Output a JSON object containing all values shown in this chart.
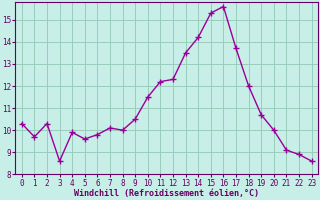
{
  "x": [
    0,
    1,
    2,
    3,
    4,
    5,
    6,
    7,
    8,
    9,
    10,
    11,
    12,
    13,
    14,
    15,
    16,
    17,
    18,
    19,
    20,
    21,
    22,
    23
  ],
  "y": [
    10.3,
    9.7,
    10.3,
    8.6,
    9.9,
    9.6,
    9.8,
    10.1,
    10.0,
    10.5,
    11.5,
    12.2,
    12.3,
    13.5,
    14.2,
    15.3,
    15.6,
    13.7,
    12.0,
    10.7,
    10.0,
    9.1,
    8.9,
    8.6
  ],
  "line_color": "#990099",
  "marker": "+",
  "marker_size": 4,
  "bg_color": "#c8eee8",
  "grid_color": "#99ccbb",
  "xlabel": "Windchill (Refroidissement éolien,°C)",
  "ylim": [
    8,
    15.8
  ],
  "xlim": [
    -0.5,
    23.5
  ],
  "yticks": [
    8,
    9,
    10,
    11,
    12,
    13,
    14,
    15
  ],
  "xticks": [
    0,
    1,
    2,
    3,
    4,
    5,
    6,
    7,
    8,
    9,
    10,
    11,
    12,
    13,
    14,
    15,
    16,
    17,
    18,
    19,
    20,
    21,
    22,
    23
  ],
  "tick_fontsize": 5.5,
  "label_fontsize": 6.0,
  "tick_color": "#660066",
  "label_color": "#660066",
  "spine_color": "#660066",
  "line_width": 1.0,
  "marker_color": "#990099"
}
